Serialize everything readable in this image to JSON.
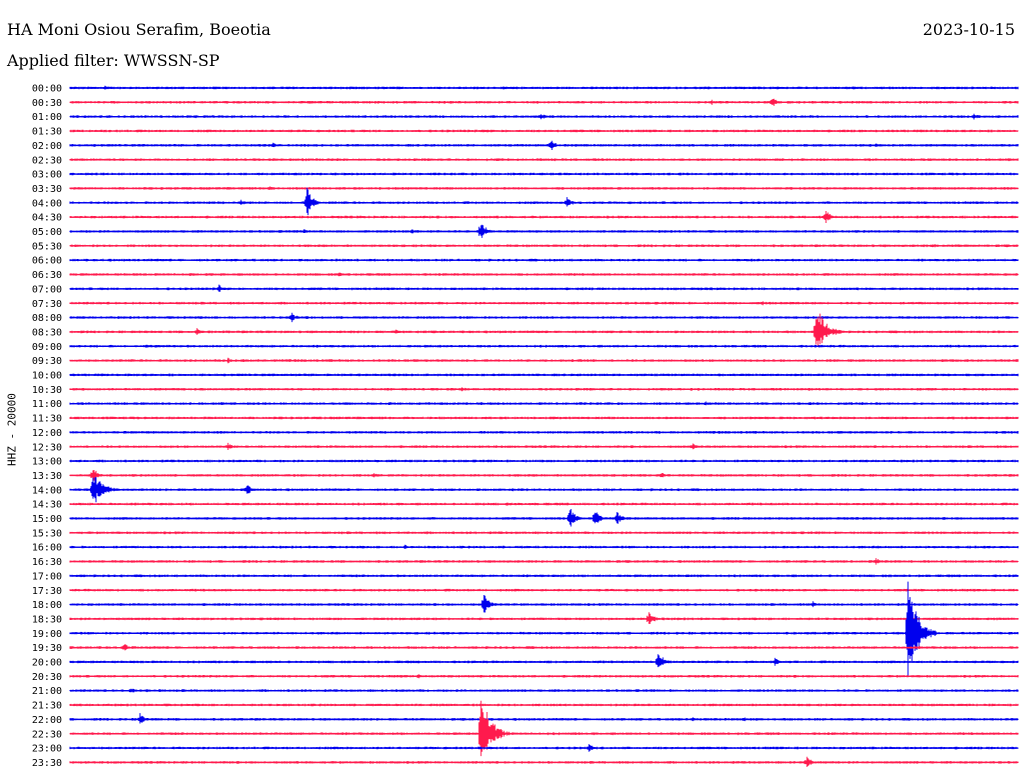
{
  "header": {
    "station": "HA Moni Osiou Serafim, Boeotia",
    "date": "2023-10-15",
    "filter": "Applied filter: WWSSN-SP"
  },
  "channel_label": "HHZ - 20000",
  "colors": {
    "blue": "#0000ee",
    "red": "#ff1a4d"
  },
  "chart_data": {
    "type": "line",
    "title": "HA Moni Osiou Serafim, Boeotia",
    "ylabel": "HHZ - 20000",
    "row_labels": [
      "00:00",
      "00:30",
      "01:00",
      "01:30",
      "02:00",
      "02:30",
      "03:00",
      "03:30",
      "04:00",
      "04:30",
      "05:00",
      "05:30",
      "06:00",
      "06:30",
      "07:00",
      "07:30",
      "08:00",
      "08:30",
      "09:00",
      "09:30",
      "10:00",
      "10:30",
      "11:00",
      "11:30",
      "12:00",
      "12:30",
      "13:00",
      "13:30",
      "14:00",
      "14:30",
      "15:00",
      "15:30",
      "16:00",
      "16:30",
      "17:00",
      "17:30",
      "18:00",
      "18:30",
      "19:00",
      "19:30",
      "20:00",
      "20:30",
      "21:00",
      "21:30",
      "22:00",
      "22:30",
      "23:00",
      "23:30"
    ],
    "x_range_minutes": [
      0,
      30
    ],
    "row_colors": [
      "blue",
      "red"
    ],
    "events": [
      {
        "row": 0,
        "minute": 1.1,
        "amp": 3
      },
      {
        "row": 0,
        "minute": 24.8,
        "amp": 2
      },
      {
        "row": 1,
        "minute": 20.3,
        "amp": 3
      },
      {
        "row": 1,
        "minute": 22.2,
        "amp": 6
      },
      {
        "row": 2,
        "minute": 14.9,
        "amp": 4
      },
      {
        "row": 2,
        "minute": 28.6,
        "amp": 4
      },
      {
        "row": 3,
        "minute": 13.1,
        "amp": 2
      },
      {
        "row": 3,
        "minute": 25.0,
        "amp": 2
      },
      {
        "row": 4,
        "minute": 6.4,
        "amp": 3
      },
      {
        "row": 4,
        "minute": 15.2,
        "amp": 7
      },
      {
        "row": 4,
        "minute": 25.5,
        "amp": 3
      },
      {
        "row": 5,
        "minute": 13.5,
        "amp": 2
      },
      {
        "row": 7,
        "minute": 6.3,
        "amp": 3
      },
      {
        "row": 7,
        "minute": 9.8,
        "amp": 2
      },
      {
        "row": 8,
        "minute": 5.4,
        "amp": 4
      },
      {
        "row": 8,
        "minute": 7.5,
        "amp": 17
      },
      {
        "row": 8,
        "minute": 15.7,
        "amp": 7
      },
      {
        "row": 9,
        "minute": 23.9,
        "amp": 9
      },
      {
        "row": 10,
        "minute": 7.4,
        "amp": 3
      },
      {
        "row": 10,
        "minute": 13.0,
        "amp": 12
      },
      {
        "row": 10,
        "minute": 10.8,
        "amp": 3
      },
      {
        "row": 11,
        "minute": 27.3,
        "amp": 3
      },
      {
        "row": 13,
        "minute": 3.8,
        "amp": 3
      },
      {
        "row": 13,
        "minute": 8.5,
        "amp": 3
      },
      {
        "row": 14,
        "minute": 4.7,
        "amp": 5
      },
      {
        "row": 15,
        "minute": 21.9,
        "amp": 3
      },
      {
        "row": 16,
        "minute": 7.0,
        "amp": 6
      },
      {
        "row": 17,
        "minute": 4.0,
        "amp": 6
      },
      {
        "row": 17,
        "minute": 10.3,
        "amp": 3
      },
      {
        "row": 17,
        "minute": 23.6,
        "amp": 30
      },
      {
        "row": 18,
        "minute": 2.4,
        "amp": 2
      },
      {
        "row": 19,
        "minute": 5.0,
        "amp": 3
      },
      {
        "row": 21,
        "minute": 12.4,
        "amp": 3
      },
      {
        "row": 21,
        "minute": 26.9,
        "amp": 2
      },
      {
        "row": 22,
        "minute": 10.1,
        "amp": 3
      },
      {
        "row": 22,
        "minute": 20.1,
        "amp": 3
      },
      {
        "row": 25,
        "minute": 5.0,
        "amp": 4
      },
      {
        "row": 25,
        "minute": 19.7,
        "amp": 4
      },
      {
        "row": 27,
        "minute": 0.7,
        "amp": 10
      },
      {
        "row": 27,
        "minute": 9.6,
        "amp": 3
      },
      {
        "row": 27,
        "minute": 18.7,
        "amp": 4
      },
      {
        "row": 28,
        "minute": 0.7,
        "amp": 22
      },
      {
        "row": 28,
        "minute": 5.6,
        "amp": 6
      },
      {
        "row": 28,
        "minute": 14.0,
        "amp": 2
      },
      {
        "row": 29,
        "minute": 13.8,
        "amp": 2
      },
      {
        "row": 30,
        "minute": 15.8,
        "amp": 14
      },
      {
        "row": 30,
        "minute": 16.6,
        "amp": 12
      },
      {
        "row": 30,
        "minute": 17.3,
        "amp": 9
      },
      {
        "row": 32,
        "minute": 10.6,
        "amp": 3
      },
      {
        "row": 33,
        "minute": 25.5,
        "amp": 4
      },
      {
        "row": 34,
        "minute": 19.5,
        "amp": 2
      },
      {
        "row": 36,
        "minute": 13.1,
        "amp": 12
      },
      {
        "row": 36,
        "minute": 23.5,
        "amp": 4
      },
      {
        "row": 37,
        "minute": 18.3,
        "amp": 9
      },
      {
        "row": 38,
        "minute": 26.5,
        "amp": 60
      },
      {
        "row": 39,
        "minute": 1.7,
        "amp": 5
      },
      {
        "row": 40,
        "minute": 18.6,
        "amp": 14
      },
      {
        "row": 40,
        "minute": 22.3,
        "amp": 5
      },
      {
        "row": 41,
        "minute": 11.0,
        "amp": 3
      },
      {
        "row": 42,
        "minute": 1.9,
        "amp": 4
      },
      {
        "row": 44,
        "minute": 2.2,
        "amp": 7
      },
      {
        "row": 44,
        "minute": 19.7,
        "amp": 3
      },
      {
        "row": 44,
        "minute": 21.3,
        "amp": 3
      },
      {
        "row": 45,
        "minute": 13.0,
        "amp": 45
      },
      {
        "row": 46,
        "minute": 16.4,
        "amp": 5
      },
      {
        "row": 47,
        "minute": 23.3,
        "amp": 7
      }
    ]
  }
}
